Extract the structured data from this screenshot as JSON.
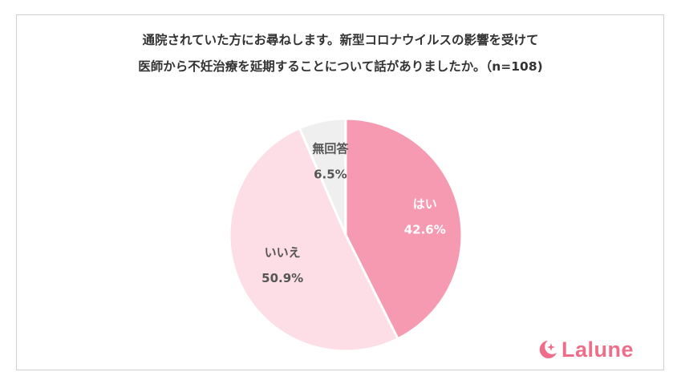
{
  "title": {
    "line1": "通院されていた方にお尋ねします。新型コロナウイルスの影響を受けて",
    "line2": "医師から不妊治療を延期することについて話がありましたか。（n=108)"
  },
  "chart_data": {
    "type": "pie",
    "slices": [
      {
        "label": "はい",
        "value": 42.6,
        "display": "42.6%",
        "color": "#f59ab1",
        "text_color": "#ffffff"
      },
      {
        "label": "いいえ",
        "value": 50.9,
        "display": "50.9%",
        "color": "#fddde6",
        "text_color": "#555555"
      },
      {
        "label": "無回答",
        "value": 6.5,
        "display": "6.5%",
        "color": "#efefef",
        "text_color": "#555555"
      }
    ]
  },
  "brand": {
    "name": "Lalune",
    "color": "#ee6e8a",
    "icon": "moon-sparkle-icon"
  }
}
